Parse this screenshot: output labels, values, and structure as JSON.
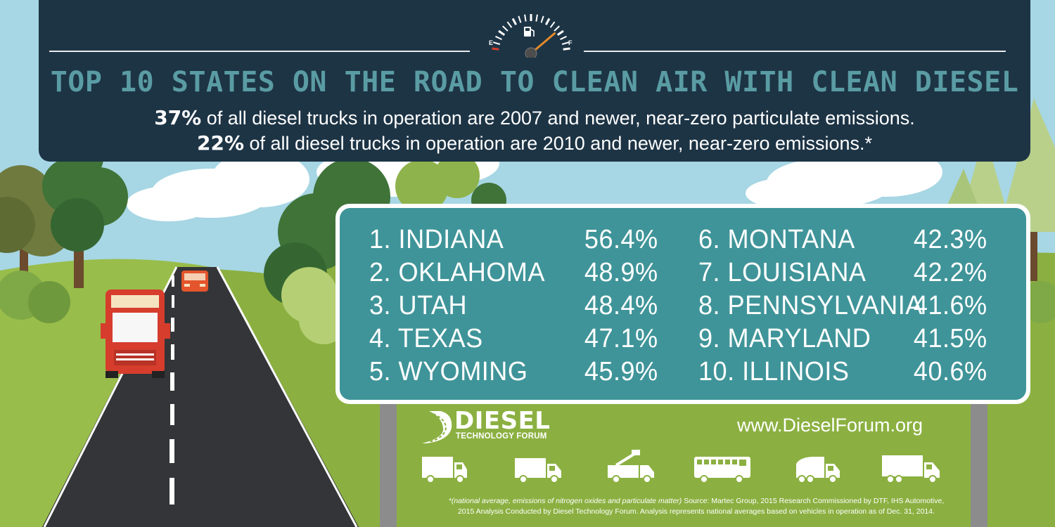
{
  "headline": "TOP 10 STATES ON THE ROAD TO CLEAN AIR WITH CLEAN DIESEL",
  "subline_1": {
    "pct": "37%",
    "text": " of all diesel trucks in operation are 2007 and newer, near-zero particulate emissions."
  },
  "subline_2": {
    "pct": "22%",
    "text": " of all diesel trucks in operation are 2010 and newer, near-zero emissions.*"
  },
  "gauge": {
    "empty_label": "E",
    "full_label": "F",
    "fill_level": 0.8
  },
  "rankings": [
    {
      "state": "1. INDIANA",
      "percent": "56.4%",
      "value": 56.4
    },
    {
      "state": "2. OKLAHOMA",
      "percent": "48.9%",
      "value": 48.9
    },
    {
      "state": "3. UTAH",
      "percent": "48.4%",
      "value": 48.4
    },
    {
      "state": "4. TEXAS",
      "percent": "47.1%",
      "value": 47.1
    },
    {
      "state": "5. WYOMING",
      "percent": "45.9%",
      "value": 45.9
    },
    {
      "state": "6. MONTANA",
      "percent": "42.3%",
      "value": 42.3
    },
    {
      "state": "7. LOUISIANA",
      "percent": "42.2%",
      "value": 42.2
    },
    {
      "state": "8. PENNSYLVANIA",
      "percent": "41.6%",
      "value": 41.6
    },
    {
      "state": "9. MARYLAND",
      "percent": "41.5%",
      "value": 41.5
    },
    {
      "state": "10. ILLINOIS",
      "percent": "40.6%",
      "value": 40.6
    }
  ],
  "logo": {
    "word": "DIESEL",
    "sub": "TECHNOLOGY FORUM"
  },
  "website": "www.DieselForum.org",
  "vehicle_icons": [
    "box-truck-icon",
    "delivery-truck-icon",
    "utility-bucket-truck-icon",
    "school-bus-icon",
    "garbage-truck-icon",
    "semi-trailer-truck-icon"
  ],
  "footnote": {
    "italic": "*(national average, emissions of nitrogen oxides and particulate matter)",
    "line1_rest": " Source: Martec Group, 2015 Research Commissioned by DTF, IHS Automotive,",
    "line2": "2015 Analysis Conducted by Diesel Technology Forum. Analysis represents national averages based on vehicles in operation as of Dec. 31, 2014."
  },
  "colors": {
    "header_bg": "#1d3445",
    "headline": "#5a9ca3",
    "sign_bg": "#3f9499",
    "grass": "#8bb041",
    "road": "#333538",
    "truck": "#d63d2d",
    "car": "#e4552d"
  }
}
